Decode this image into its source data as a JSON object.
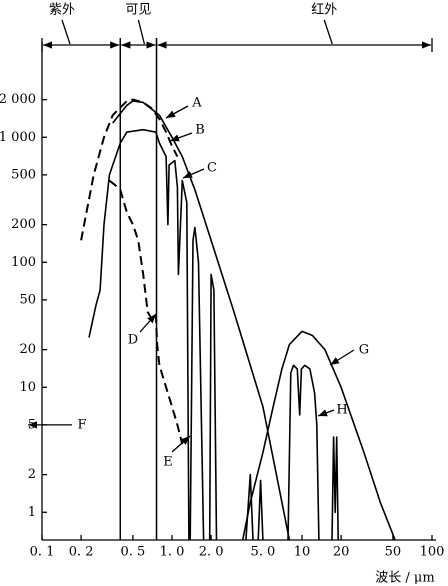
{
  "chart_data": {
    "type": "line",
    "x_label": "波长 / μm",
    "log_x": true,
    "log_y": true,
    "grid": false,
    "xlim": [
      0.1,
      100
    ],
    "ylim": [
      0.6,
      4000
    ],
    "xticks": [
      {
        "value": 0.1,
        "label": "0. 1"
      },
      {
        "value": 0.2,
        "label": "0. 2"
      },
      {
        "value": 0.5,
        "label": "0. 5"
      },
      {
        "value": 1,
        "label": "1. 0"
      },
      {
        "value": 2,
        "label": "2. 0"
      },
      {
        "value": 5,
        "label": "5. 0"
      },
      10,
      20,
      50,
      100
    ],
    "yticks": [
      1,
      2,
      5,
      10,
      20,
      50,
      100,
      200,
      500,
      {
        "value": 1000,
        "label": "1 000"
      },
      {
        "value": 2000,
        "label": "2 000"
      }
    ],
    "regions": [
      {
        "name": "紫外",
        "range": [
          0.1,
          0.4
        ]
      },
      {
        "name": "可见",
        "range": [
          0.4,
          0.76
        ]
      },
      {
        "name": "红外",
        "range": [
          0.76,
          100
        ]
      }
    ],
    "series": [
      {
        "name": "A",
        "color": "#000000",
        "dashed": true,
        "x": [
          0.2,
          0.25,
          0.3,
          0.35,
          0.45,
          0.5,
          0.6,
          0.7,
          0.8,
          0.9,
          1.0,
          1.1
        ],
        "values": [
          150,
          500,
          1000,
          1500,
          1950,
          2000,
          1900,
          1700,
          1400,
          1100,
          850,
          700
        ]
      },
      {
        "name": "B",
        "color": "#000000",
        "dashed": false,
        "x": [
          0.23,
          0.26,
          0.28,
          0.3,
          0.33,
          0.4,
          0.45,
          0.6,
          0.75,
          0.8,
          0.9,
          0.93,
          0.95,
          1.05,
          1.1,
          1.12,
          1.2,
          1.3,
          1.35
        ],
        "values": [
          25,
          45,
          60,
          200,
          500,
          900,
          1100,
          1150,
          1100,
          900,
          700,
          200,
          600,
          650,
          400,
          80,
          450,
          300,
          0.6
        ]
      },
      {
        "name": "C",
        "color": "#000000",
        "dashed": false,
        "x": [
          0.35,
          0.45,
          0.5,
          0.6,
          0.8,
          1.0,
          1.2,
          1.5,
          2.0,
          3.0,
          5.0,
          8.0
        ],
        "values": [
          1300,
          1800,
          1950,
          1900,
          1500,
          1000,
          700,
          380,
          150,
          40,
          7,
          0.6
        ]
      },
      {
        "name": "D",
        "color": "#000000",
        "dashed": true,
        "x": [
          0.33,
          0.36,
          0.4,
          0.45,
          0.5,
          0.55,
          0.6,
          0.65,
          0.7,
          0.75,
          0.77,
          0.8,
          0.9,
          1.0,
          1.1,
          1.2
        ],
        "values": [
          450,
          420,
          380,
          250,
          200,
          150,
          80,
          40,
          35,
          38,
          22,
          15,
          10,
          7,
          5,
          3.5
        ]
      },
      {
        "name": "E",
        "color": "#000000",
        "dashed": false,
        "x": [
          1.38,
          1.45,
          1.5,
          1.6,
          1.75,
          null,
          1.95,
          2.0,
          2.1,
          2.2,
          null,
          3.7,
          4.0,
          4.2,
          null,
          4.6,
          4.8,
          5.0
        ],
        "values": [
          0.6,
          150,
          190,
          100,
          0.6,
          null,
          0.6,
          80,
          60,
          0.6,
          null,
          0.6,
          2,
          0.6,
          null,
          0.6,
          1.8,
          0.6
        ]
      },
      {
        "name": "G",
        "color": "#000000",
        "dashed": false,
        "x": [
          3.5,
          4,
          5,
          6,
          7,
          8,
          10,
          12,
          15,
          20,
          30,
          40,
          52
        ],
        "values": [
          0.6,
          1.2,
          3,
          7,
          14,
          22,
          28,
          26,
          20,
          10,
          3,
          1.2,
          0.6
        ]
      },
      {
        "name": "H",
        "color": "#000000",
        "dashed": false,
        "x": [
          7.8,
          8.2,
          8.6,
          9.2,
          9.6,
          9.9,
          10.5,
          11.5,
          12.5,
          13,
          13.5,
          null,
          17,
          17.5,
          18,
          18.5,
          19
        ],
        "values": [
          0.6,
          13,
          15,
          14,
          6,
          14,
          15,
          14,
          9,
          5,
          0.6,
          null,
          0.6,
          4,
          1,
          4,
          0.6
        ]
      }
    ],
    "annotations": [
      {
        "text": "F",
        "y": 5
      }
    ]
  }
}
